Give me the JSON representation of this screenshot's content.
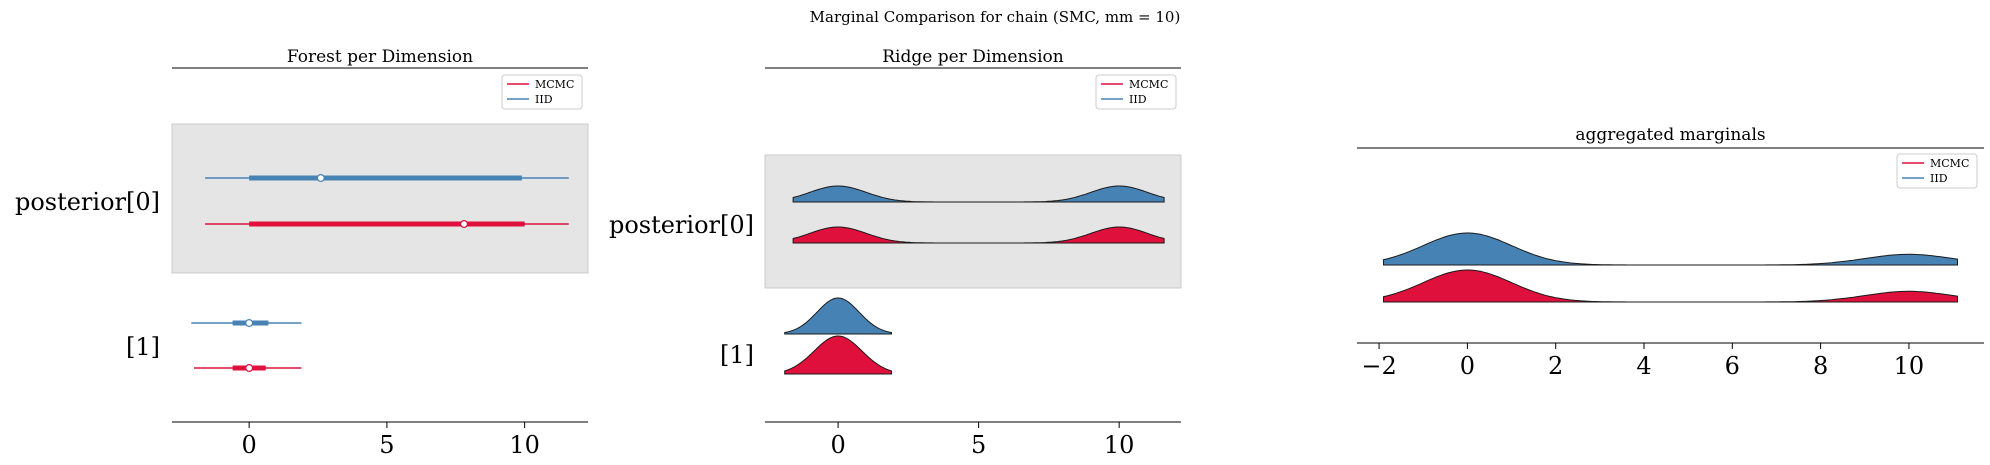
{
  "suptitle": "Marginal Comparison for chain (SMC, mm = 10)",
  "colors": {
    "mcmc": "#e0103c",
    "iid": "#4682b4",
    "band": "#e5e5e5"
  },
  "chart_data": [
    {
      "type": "forest",
      "title": "Forest per Dimension",
      "xlim": [
        -2.8,
        12.3
      ],
      "xticks": [
        0,
        5,
        10
      ],
      "rows": [
        {
          "label": "posterior[0]",
          "shaded": true,
          "series": [
            {
              "name": "IID",
              "color_key": "iid",
              "min": -1.6,
              "q1": 0.0,
              "median": 2.6,
              "q3": 9.9,
              "max": 11.6
            },
            {
              "name": "MCMC",
              "color_key": "mcmc",
              "min": -1.6,
              "q1": 0.0,
              "median": 7.8,
              "q3": 10.0,
              "max": 11.6
            }
          ]
        },
        {
          "label": "[1]",
          "shaded": false,
          "series": [
            {
              "name": "IID",
              "color_key": "iid",
              "min": -2.1,
              "q1": -0.6,
              "median": 0.0,
              "q3": 0.7,
              "max": 1.9
            },
            {
              "name": "MCMC",
              "color_key": "mcmc",
              "min": -2.0,
              "q1": -0.6,
              "median": 0.0,
              "q3": 0.6,
              "max": 1.9
            }
          ]
        }
      ],
      "legend": {
        "entries": [
          "MCMC",
          "IID"
        ],
        "placement": "top-right"
      }
    },
    {
      "type": "ridge",
      "title": "Ridge per Dimension",
      "xlim": [
        -2.6,
        12.2
      ],
      "xticks": [
        0,
        5,
        10
      ],
      "rows": [
        {
          "label": "posterior[0]",
          "shaded": true,
          "x_range": [
            -1.6,
            11.6
          ],
          "series": [
            {
              "name": "IID",
              "color_key": "iid",
              "modes": [
                {
                  "mu": 0,
                  "sd": 1,
                  "w": 1.0
                },
                {
                  "mu": 10,
                  "sd": 1,
                  "w": 1.0
                }
              ]
            },
            {
              "name": "MCMC",
              "color_key": "mcmc",
              "modes": [
                {
                  "mu": 0,
                  "sd": 1,
                  "w": 1.0
                },
                {
                  "mu": 10,
                  "sd": 1,
                  "w": 1.0
                }
              ]
            }
          ]
        },
        {
          "label": "[1]",
          "shaded": false,
          "x_range": [
            -1.9,
            1.9
          ],
          "series": [
            {
              "name": "IID",
              "color_key": "iid",
              "modes": [
                {
                  "mu": 0,
                  "sd": 0.75,
                  "w": 1.0
                }
              ]
            },
            {
              "name": "MCMC",
              "color_key": "mcmc",
              "modes": [
                {
                  "mu": 0,
                  "sd": 0.85,
                  "w": 1.0
                }
              ]
            }
          ]
        }
      ],
      "legend": {
        "entries": [
          "MCMC",
          "IID"
        ],
        "placement": "top-right"
      }
    },
    {
      "type": "ridge",
      "title": "aggregated marginals",
      "xlim": [
        -2.5,
        11.7
      ],
      "xticks": [
        -2,
        0,
        2,
        4,
        6,
        8,
        10
      ],
      "x_range": [
        -1.9,
        11.1
      ],
      "series": [
        {
          "name": "IID",
          "color_key": "iid",
          "modes": [
            {
              "mu": 0,
              "sd": 1,
              "w": 3.0
            },
            {
              "mu": 10,
              "sd": 1,
              "w": 1.0
            }
          ]
        },
        {
          "name": "MCMC",
          "color_key": "mcmc",
          "modes": [
            {
              "mu": 0,
              "sd": 1,
              "w": 3.0
            },
            {
              "mu": 10,
              "sd": 1,
              "w": 1.0
            }
          ]
        }
      ],
      "legend": {
        "entries": [
          "MCMC",
          "IID"
        ],
        "placement": "top-right"
      }
    }
  ]
}
